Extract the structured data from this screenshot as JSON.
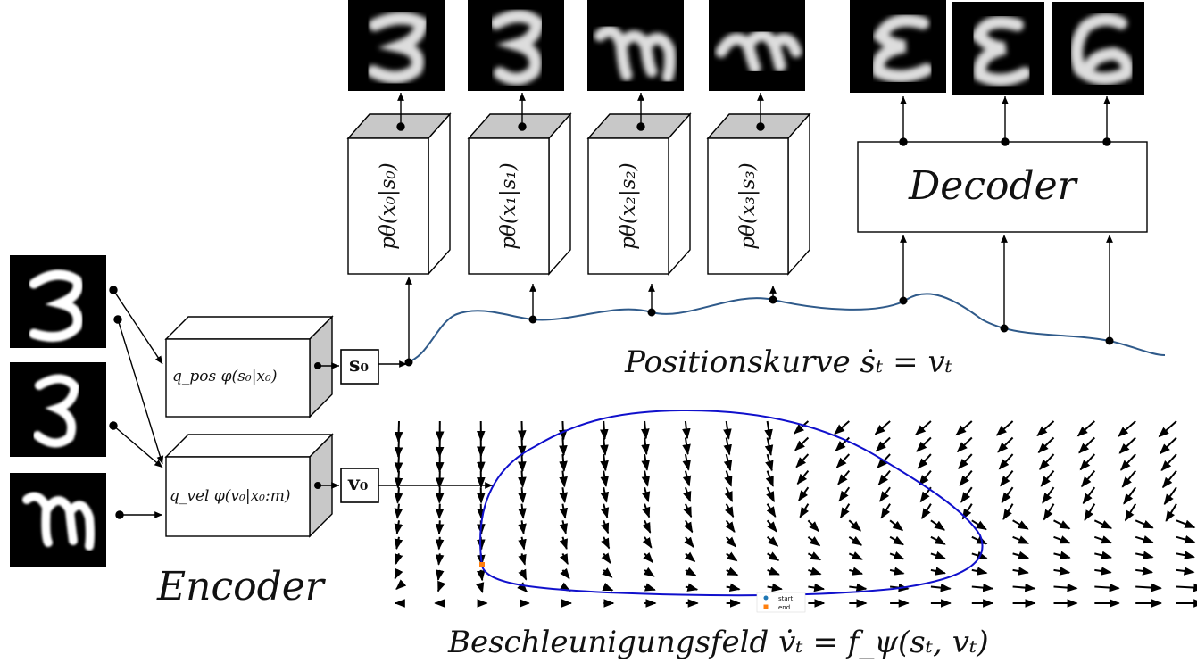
{
  "encoder": {
    "title": "Encoder",
    "pos_label": "q_pos φ(s₀|x₀)",
    "vel_label": "q_vel φ(v₀|x₀:m)"
  },
  "latents": {
    "s0": "s₀",
    "v0": "v₀"
  },
  "decoders": [
    {
      "label": "pθ(x₀|s₀)"
    },
    {
      "label": "pθ(x₁|s₁)"
    },
    {
      "label": "pθ(x₂|s₂)"
    },
    {
      "label": "pθ(x₃|s₃)"
    }
  ],
  "decoder_box": {
    "label": "Decoder"
  },
  "position_curve": {
    "label": "Positionskurve ṡₜ = vₜ"
  },
  "accel_field": {
    "label": "Beschleunigungsfeld   v̇ₜ = f_ψ(sₜ, vₜ)"
  },
  "legend": {
    "start": "start",
    "end": "end"
  },
  "colors": {
    "curve": "#2f5a8a",
    "trajectory": "#1010cc",
    "start_marker": "#1f77b4",
    "end_marker": "#ff7f0e"
  }
}
